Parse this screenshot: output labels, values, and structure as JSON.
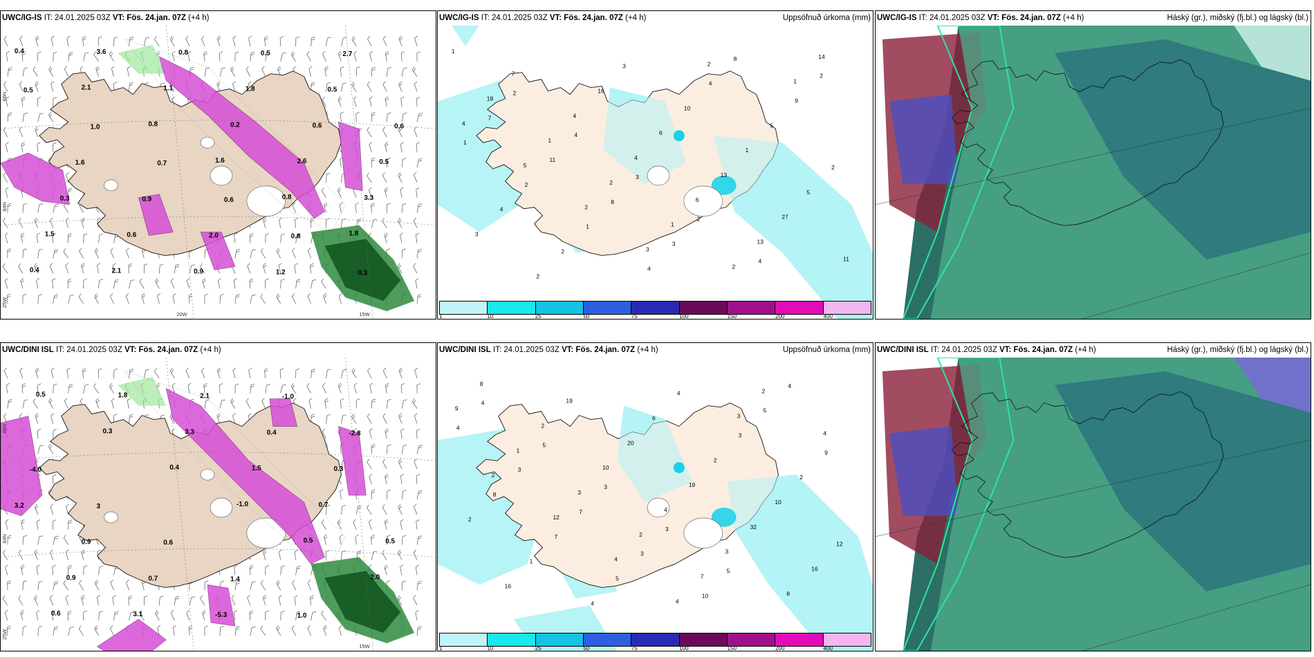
{
  "panels": [
    {
      "model": "UWC/IG-IS",
      "it": "IT: 24.01.2025 03Z",
      "vt_label": "VT:",
      "vt": "Fös. 24.jan. 07Z",
      "lead": "(+4 h)",
      "right_title": ""
    },
    {
      "model": "UWC/IG-IS",
      "it": "IT: 24.01.2025 03Z",
      "vt_label": "VT:",
      "vt": "Fös. 24.jan. 07Z",
      "lead": "(+4 h)",
      "right_title": "Uppsöfnuð úrkoma (mm)"
    },
    {
      "model": "UWC/IG-IS",
      "it": "IT: 24.01.2025 03Z",
      "vt_label": "VT:",
      "vt": "Fös. 24.jan. 07Z",
      "lead": "(+4 h)",
      "right_title": "Háský (gr.), miðský (fj.bl.) og lágský (bl.)"
    },
    {
      "model": "UWC/DINI ISL",
      "it": "IT: 24.01.2025 03Z",
      "vt_label": "VT:",
      "vt": "Fös. 24.jan. 07Z",
      "lead": "(+4 h)",
      "right_title": ""
    },
    {
      "model": "UWC/DINI ISL",
      "it": "IT: 24.01.2025 03Z",
      "vt_label": "VT:",
      "vt": "Fös. 24.jan. 07Z",
      "lead": "(+4 h)",
      "right_title": "Uppsöfnuð úrkoma (mm)"
    },
    {
      "model": "UWC/DINI ISL",
      "it": "IT: 24.01.2025 03Z",
      "vt_label": "VT:",
      "vt": "Fös. 24.jan. 07Z",
      "lead": "(+4 h)",
      "right_title": "Háský (gr.), miðský (fj.bl.) og lágský (bl.)"
    }
  ],
  "colorbar": {
    "colors": [
      "#bff5f7",
      "#19e8ec",
      "#14c3e6",
      "#2d5fe0",
      "#2a2ab4",
      "#6a0a58",
      "#a0108c",
      "#e20cb8",
      "#f3b6f0"
    ],
    "ticks": [
      "1",
      "10",
      "25",
      "50",
      "75",
      "100",
      "150",
      "200",
      "400"
    ]
  },
  "map_axes": {
    "top": {
      "lat_labels": [
        "66N",
        "64N"
      ],
      "lon_labels": [
        "20W",
        "15W"
      ],
      "lon_west": "25W"
    },
    "bottom": {
      "lat_labels": [
        "66N",
        "64N"
      ],
      "lon_labels": [
        "15W"
      ],
      "lon_west": "25W"
    }
  },
  "field_labels": {
    "temp_top": [
      "0.4",
      "2.1",
      "0.8",
      "1.6",
      "0.8",
      "1.8",
      "0.4",
      "3.6",
      "1.1",
      "0.2",
      "2.6",
      "3.3",
      "1.5",
      "2.1",
      "0.8",
      "1.8",
      "0.6",
      "0.5",
      "0.3",
      "0.6",
      "0.9",
      "0.5",
      "0.5",
      "0.6",
      "1.6",
      "0.9",
      "2.0",
      "1.2",
      "2.7",
      "0.5",
      "1.0",
      "0.7",
      "0.6",
      "0.8",
      "0.3"
    ],
    "temp_bottom": [
      "0.5",
      "0.3",
      "0.4",
      "-1.0",
      "0.5",
      "2.0",
      "0.6",
      "1.8",
      "3.3",
      "1.5",
      "0.7",
      "0.5",
      "0.9",
      "3.1",
      "2.1",
      "0.4",
      "0.3",
      "3.2",
      "0.9",
      "0.7",
      "-5.3",
      "-1.0",
      "-2.8",
      "-4.0",
      "3",
      "0.6",
      "1.4",
      "1.0"
    ],
    "precip_top": [
      "1",
      "2",
      "4",
      "3",
      "2",
      "4",
      "2",
      "7",
      "11",
      "8",
      "3",
      "8",
      "9",
      "1",
      "2",
      "1",
      "4",
      "4",
      "5",
      "2",
      "4",
      "2",
      "3",
      "10",
      "1",
      "5",
      "3",
      "2",
      "16",
      "6",
      "13",
      "27",
      "11",
      "7",
      "4",
      "4",
      "6",
      "13",
      "14",
      "18",
      "1",
      "2",
      "1",
      "2",
      "1",
      "4",
      "5",
      "2",
      "3",
      "2"
    ],
    "precip_bottom": [
      "4",
      "5",
      "3",
      "3",
      "5",
      "4",
      "4",
      "3",
      "7",
      "3",
      "10",
      "5",
      "9",
      "8",
      "7",
      "5",
      "4",
      "3",
      "2",
      "2",
      "1",
      "4",
      "6",
      "2",
      "10",
      "12",
      "16",
      "19",
      "20",
      "19",
      "32",
      "16",
      "8",
      "2",
      "10",
      "4",
      "3",
      "8",
      "9",
      "1",
      "3",
      "2",
      "7",
      "2",
      "4",
      "2",
      "12",
      "4",
      "4",
      "3"
    ]
  }
}
